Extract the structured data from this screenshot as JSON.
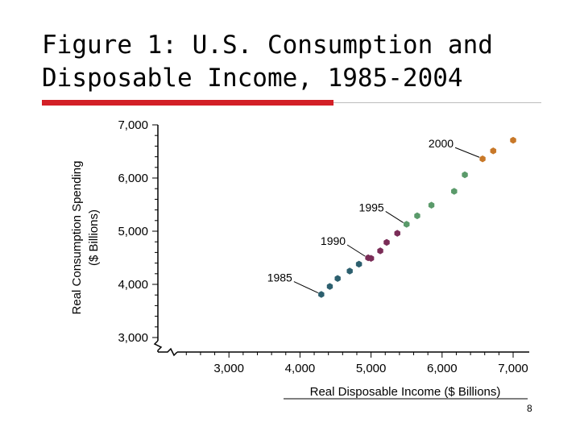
{
  "slide": {
    "title_line1": "Figure 1:  U.S. Consumption and",
    "title_line2": "Disposable Income, 1985-2004",
    "page_number": "8"
  },
  "chart_data": {
    "type": "scatter",
    "title": "",
    "xlabel": "Real Disposable Income ($ Billions)",
    "ylabel_line1": "Real Consumption Spending",
    "ylabel_line2": "($ Billions)",
    "xlim": [
      2000,
      7000
    ],
    "ylim": [
      3000,
      7000
    ],
    "axis_break": true,
    "x_ticks": [
      {
        "value": 3000,
        "label": "3,000"
      },
      {
        "value": 4000,
        "label": "4,000"
      },
      {
        "value": 5000,
        "label": "5,000"
      },
      {
        "value": 6000,
        "label": "6,000"
      },
      {
        "value": 7000,
        "label": "7,000"
      }
    ],
    "y_ticks": [
      {
        "value": 3000,
        "label": "3,000"
      },
      {
        "value": 4000,
        "label": "4,000"
      },
      {
        "value": 5000,
        "label": "5,000"
      },
      {
        "value": 6000,
        "label": "6,000"
      },
      {
        "value": 7000,
        "label": "7,000"
      }
    ],
    "series": [
      {
        "color": "#2c5f6e",
        "points": [
          [
            4300,
            3810
          ],
          [
            4420,
            3960
          ],
          [
            4530,
            4110
          ],
          [
            4700,
            4250
          ],
          [
            4830,
            4380
          ]
        ]
      },
      {
        "color": "#7a2c57",
        "points": [
          [
            4960,
            4500
          ],
          [
            5000,
            4490
          ],
          [
            5130,
            4630
          ],
          [
            5220,
            4790
          ],
          [
            5370,
            4960
          ]
        ]
      },
      {
        "color": "#5a9a6a",
        "points": [
          [
            5500,
            5130
          ],
          [
            5650,
            5290
          ],
          [
            5850,
            5490
          ],
          [
            6170,
            5750
          ],
          [
            6320,
            6060
          ]
        ]
      },
      {
        "color": "#c87828",
        "points": [
          [
            6570,
            6360
          ],
          [
            6720,
            6510
          ],
          [
            7000,
            6710
          ]
        ]
      }
    ],
    "annotations": [
      {
        "label": "1985",
        "point": [
          4300,
          3810
        ]
      },
      {
        "label": "1990",
        "point": [
          4960,
          4500
        ]
      },
      {
        "label": "1995",
        "point": [
          5500,
          5130
        ]
      },
      {
        "label": "2000",
        "point": [
          6570,
          6360
        ]
      }
    ],
    "colors": {
      "axis": "#000000",
      "title_bar": "#d32027"
    }
  }
}
